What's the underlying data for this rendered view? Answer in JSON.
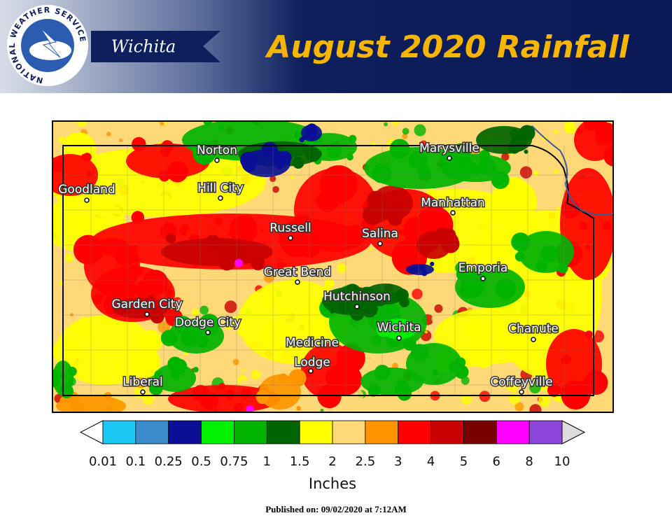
{
  "header": {
    "logo_text": "NATIONAL WEATHER SERVICE",
    "office": "Wichita",
    "title": "August 2020 Rainfall"
  },
  "map": {
    "cities": [
      {
        "lines": [
          "Norton"
        ]
      },
      {
        "lines": [
          "Goodland"
        ]
      },
      {
        "lines": [
          "Hill City"
        ]
      },
      {
        "lines": [
          "Russell"
        ]
      },
      {
        "lines": [
          "Salina"
        ]
      },
      {
        "lines": [
          "Manhattan"
        ]
      },
      {
        "lines": [
          "Marysville"
        ]
      },
      {
        "lines": [
          "Great Bend"
        ]
      },
      {
        "lines": [
          "Hutchinson"
        ]
      },
      {
        "lines": [
          "Emporia"
        ]
      },
      {
        "lines": [
          "Garden City"
        ]
      },
      {
        "lines": [
          "Dodge City"
        ]
      },
      {
        "lines": [
          "Wichita"
        ]
      },
      {
        "lines": [
          "Chanute"
        ]
      },
      {
        "lines": [
          "Medicine",
          "Lodge"
        ]
      },
      {
        "lines": [
          "Liberal"
        ]
      },
      {
        "lines": [
          "Coffeyville"
        ]
      }
    ]
  },
  "legend": {
    "ticks": [
      "0.01",
      "0.1",
      "0.25",
      "0.5",
      "0.75",
      "1",
      "1.5",
      "2",
      "2.5",
      "3",
      "4",
      "5",
      "6",
      "8",
      "10"
    ],
    "colors": [
      "#1ec8f5",
      "#3c8ccc",
      "#0a0f96",
      "#00f000",
      "#00b400",
      "#006400",
      "#ffff00",
      "#ffd878",
      "#ff9600",
      "#ff0000",
      "#c80000",
      "#780000",
      "#ff00ff",
      "#8c46dc"
    ],
    "unit": "Inches"
  },
  "footer": "Published on: 09/02/2020 at 7:12AM"
}
